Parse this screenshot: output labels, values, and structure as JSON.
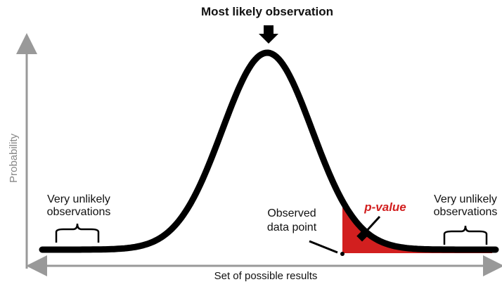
{
  "title": "Most likely observation",
  "y_axis_label": "Probability",
  "x_axis_label": "Set of possible results",
  "annotations": {
    "left": [
      "Very unlikely",
      "observations"
    ],
    "right": [
      "Very unlikely",
      "observations"
    ],
    "observed": [
      "Observed",
      "data point"
    ],
    "p_value": "p-value"
  }
}
